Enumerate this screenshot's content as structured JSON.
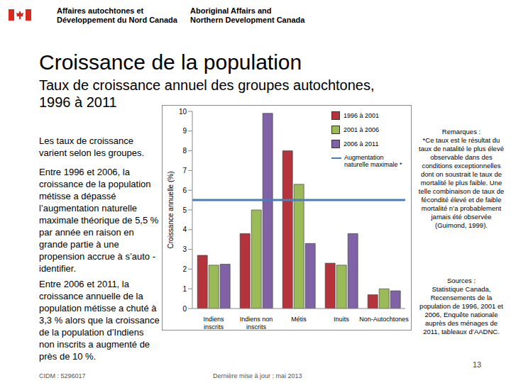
{
  "header": {
    "fr": [
      "Affaires autochtones et",
      "Développement du Nord Canada"
    ],
    "en": [
      "Aboriginal Affairs and",
      "Northern Development Canada"
    ]
  },
  "title": "Croissance de la population",
  "subtitle": [
    "Taux de croissance annuel des groupes autochtones,",
    "1996 à 2011"
  ],
  "left_text": [
    "Les taux de croissance varient selon les groupes.",
    "Entre 1996 et 2006, la croissance de la population métisse a dépassé l’augmentation naturelle maximale théorique de 5,5 % par année en raison en grande partie à une propension accrue à s’auto -identifier.",
    "Entre 2006 et 2011, la croissance annuelle de la population métisse a chuté à 3,3 % alors que la croissance de la population d’Indiens non inscrits a augmenté de près de 10 %."
  ],
  "chart_data": {
    "type": "bar",
    "y_label": "Croissance annuelle (%)",
    "categories": [
      "Indiens inscrits",
      "Indiens non inscrits",
      "Métis",
      "Inuits",
      "Non-Autochtones"
    ],
    "series": [
      {
        "name": "1996 à 2001",
        "color": "#b5343c",
        "values": [
          2.7,
          3.8,
          8.0,
          2.3,
          0.7
        ]
      },
      {
        "name": "2001 à 2006",
        "color": "#9bbb59",
        "values": [
          2.2,
          5.0,
          6.3,
          2.2,
          1.0
        ]
      },
      {
        "name": "2006 à 2011",
        "color": "#7f63a6",
        "values": [
          2.25,
          9.9,
          3.3,
          3.8,
          0.9
        ]
      }
    ],
    "reference_line": {
      "name": "Augmentation naturelle maximale *",
      "value": 5.5,
      "color": "#4a7ebb"
    },
    "ylim": [
      0,
      10
    ],
    "yticks": [
      0,
      1,
      2,
      3,
      4,
      5,
      6,
      7,
      8,
      9,
      10
    ],
    "grid": false,
    "legend": "upper right"
  },
  "remarks": {
    "title": "Remarques :",
    "text": "*Ce taux est le résultat du taux de natalité le plus élevé observable dans des conditions exceptionnelles dont on soustrait le taux de mortalité le plus faible. Une telle combinaison de taux de fécondité élevé et de faible mortalité n’a probablement jamais été observée (Guimond, 1999)."
  },
  "sources": {
    "title": "Sources :",
    "text": "Statistique Canada, Recensements de la population de 1996, 2001 et 2006, Enquête nationale auprès des ménages de 2011, tableaux d’AADNC."
  },
  "footer": {
    "id": "CIDM : 5296017",
    "updated": "Dernière mise à jour : mai 2013",
    "page": "13"
  }
}
